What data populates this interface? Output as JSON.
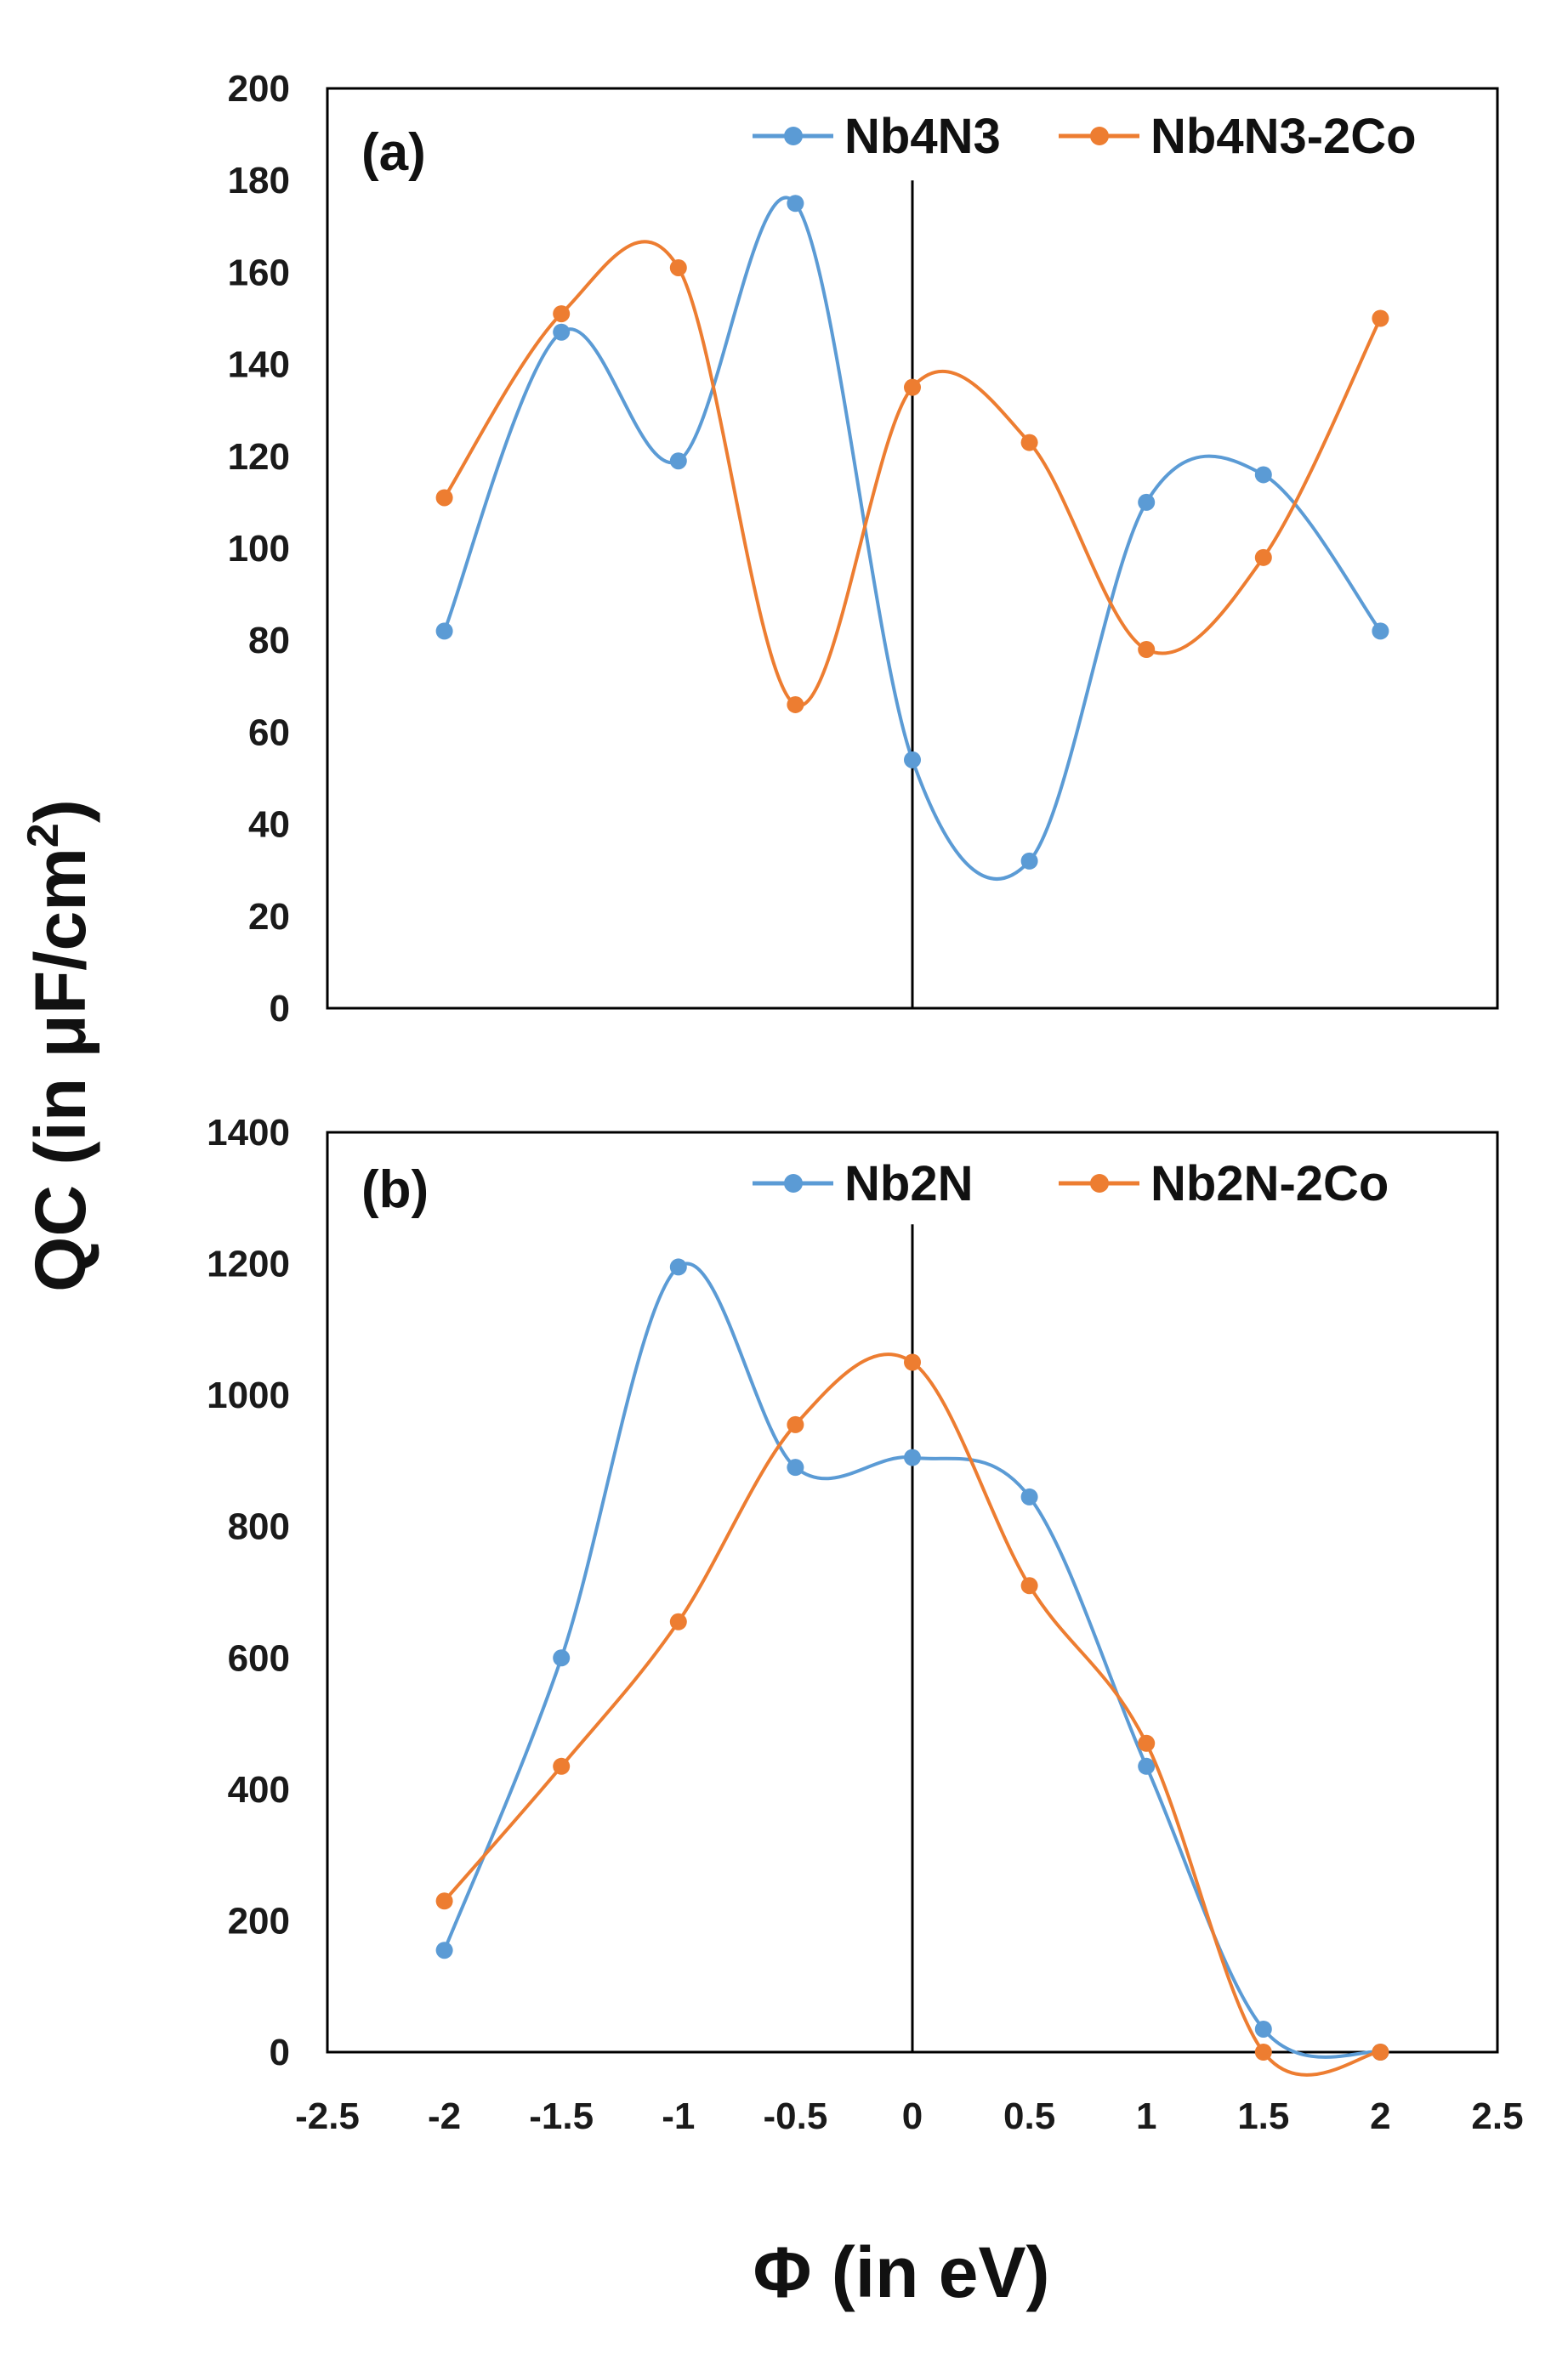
{
  "figure": {
    "ylabel_main": "QC (in μF/cm",
    "ylabel_sup": "2",
    "ylabel_close": ")",
    "xlabel": "Φ (in eV)"
  },
  "colors": {
    "blue": "#5b9bd5",
    "orange": "#ed7d31",
    "axis": "#000000"
  },
  "chart_data": [
    {
      "type": "line",
      "smooth": true,
      "panel_label": "(a)",
      "x": [
        -2,
        -1.5,
        -1,
        -0.5,
        0,
        0.5,
        1,
        1.5,
        2
      ],
      "ylim": [
        0,
        200
      ],
      "yticks": [
        0,
        20,
        40,
        60,
        80,
        100,
        120,
        140,
        160,
        180,
        200
      ],
      "ytick_labels": [
        "0",
        "20",
        "40",
        "60",
        "80",
        "100",
        "120",
        "140",
        "160",
        "180",
        "200"
      ],
      "xlim": [
        -2.5,
        2.5
      ],
      "show_xticks": false,
      "vertical_line_at": 0,
      "legend_position": "top-right",
      "series": [
        {
          "name": "Nb4N3",
          "color": "#5b9bd5",
          "values": [
            82,
            147,
            119,
            175,
            54,
            32,
            110,
            116,
            82
          ]
        },
        {
          "name": "Nb4N3-2Co",
          "color": "#ed7d31",
          "values": [
            111,
            151,
            161,
            66,
            135,
            123,
            78,
            98,
            150
          ]
        }
      ]
    },
    {
      "type": "line",
      "smooth": true,
      "panel_label": "(b)",
      "x": [
        -2,
        -1.5,
        -1,
        -0.5,
        0,
        0.5,
        1,
        1.5,
        2
      ],
      "ylim": [
        0,
        1400
      ],
      "yticks": [
        0,
        200,
        400,
        600,
        800,
        1000,
        1200,
        1400
      ],
      "ytick_labels": [
        "0",
        "200",
        "400",
        "600",
        "800",
        "1000",
        "1200",
        "1400"
      ],
      "xlim": [
        -2.5,
        2.5
      ],
      "xticks": [
        -2.5,
        -2,
        -1.5,
        -1,
        -0.5,
        0,
        0.5,
        1,
        1.5,
        2,
        2.5
      ],
      "xtick_labels": [
        "-2.5",
        "-2",
        "-1.5",
        "-1",
        "-0.5",
        "0",
        "0.5",
        "1",
        "1.5",
        "2",
        "2.5"
      ],
      "show_xticks": true,
      "vertical_line_at": 0,
      "legend_position": "top-right",
      "series": [
        {
          "name": "Nb2N",
          "color": "#5b9bd5",
          "values": [
            155,
            600,
            1195,
            890,
            905,
            845,
            435,
            35,
            0
          ]
        },
        {
          "name": "Nb2N-2Co",
          "color": "#ed7d31",
          "values": [
            230,
            435,
            655,
            955,
            1050,
            710,
            470,
            0,
            0
          ]
        }
      ]
    }
  ]
}
